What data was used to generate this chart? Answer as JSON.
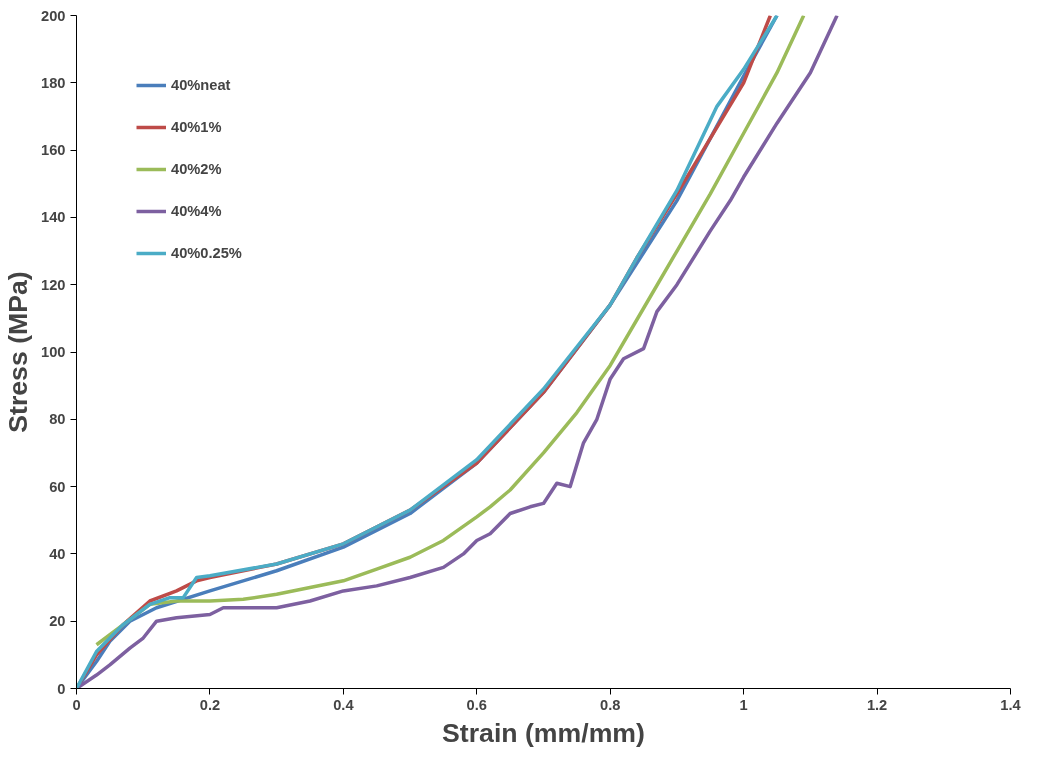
{
  "chart_data": {
    "type": "line",
    "xlabel": "Strain (mm/mm)",
    "ylabel": "Stress (MPa)",
    "xlim": [
      0,
      1.4
    ],
    "ylim": [
      0,
      200
    ],
    "xticks": [
      0,
      0.2,
      0.4,
      0.6,
      0.8,
      1,
      1.2,
      1.4
    ],
    "yticks": [
      0,
      20,
      40,
      60,
      80,
      100,
      120,
      140,
      160,
      180,
      200
    ],
    "grid": false,
    "legend": "top left",
    "marker": "none",
    "line_style": "solid",
    "series": [
      {
        "name": "40%neat",
        "color": "#4a7ebb",
        "x": [
          0,
          0.03,
          0.05,
          0.08,
          0.12,
          0.2,
          0.3,
          0.4,
          0.5,
          0.6,
          0.7,
          0.8,
          0.9,
          1.0,
          1.05
        ],
        "values": [
          0,
          8,
          14,
          20,
          24,
          29,
          35,
          42,
          52,
          67,
          88,
          114,
          145,
          182,
          200
        ]
      },
      {
        "name": "40%1%",
        "color": "#be4b48",
        "x": [
          0,
          0.03,
          0.07,
          0.11,
          0.15,
          0.18,
          0.2,
          0.3,
          0.4,
          0.5,
          0.6,
          0.7,
          0.8,
          0.84,
          0.9,
          1.0,
          1.04
        ],
        "values": [
          0,
          10,
          19,
          26,
          29,
          32,
          33,
          37,
          43,
          53,
          67,
          88,
          114,
          128,
          147,
          180,
          200
        ]
      },
      {
        "name": "40%2%",
        "color": "#9bbb59",
        "x": [
          0.03,
          0.05,
          0.07,
          0.11,
          0.15,
          0.2,
          0.25,
          0.3,
          0.35,
          0.4,
          0.45,
          0.5,
          0.55,
          0.6,
          0.62,
          0.65,
          0.7,
          0.75,
          0.8,
          0.85,
          0.9,
          0.95,
          1.0,
          1.05,
          1.09
        ],
        "values": [
          13,
          16,
          19,
          25,
          26,
          26,
          26.5,
          28,
          30,
          32,
          35.5,
          39,
          44,
          51,
          54,
          59,
          70,
          82,
          96,
          113,
          130,
          147,
          165,
          183,
          200
        ]
      },
      {
        "name": "40%4%",
        "color": "#7d60a0",
        "x": [
          0,
          0.03,
          0.05,
          0.08,
          0.1,
          0.12,
          0.15,
          0.2,
          0.22,
          0.25,
          0.3,
          0.35,
          0.4,
          0.45,
          0.5,
          0.55,
          0.58,
          0.6,
          0.62,
          0.65,
          0.68,
          0.7,
          0.72,
          0.74,
          0.76,
          0.78,
          0.8,
          0.82,
          0.85,
          0.87,
          0.9,
          0.95,
          0.98,
          1.0,
          1.05,
          1.1,
          1.14
        ],
        "values": [
          0,
          4,
          7,
          12,
          15,
          20,
          21,
          22,
          24,
          24,
          24,
          26,
          29,
          30.5,
          33,
          36,
          40,
          44,
          46,
          52,
          54,
          55,
          61,
          60,
          73,
          80,
          92,
          98,
          101,
          112,
          120,
          136,
          145,
          152,
          168,
          183,
          200
        ]
      },
      {
        "name": "40%0.25%",
        "color": "#4bacc6",
        "x": [
          0,
          0.03,
          0.07,
          0.11,
          0.14,
          0.16,
          0.18,
          0.2,
          0.3,
          0.4,
          0.5,
          0.6,
          0.7,
          0.8,
          0.84,
          0.9,
          0.96,
          1.0,
          1.05
        ],
        "values": [
          0,
          11,
          19,
          25,
          27,
          27,
          33,
          33.5,
          37,
          43,
          53,
          68,
          89,
          114,
          128,
          148,
          173,
          184,
          200
        ]
      }
    ]
  }
}
